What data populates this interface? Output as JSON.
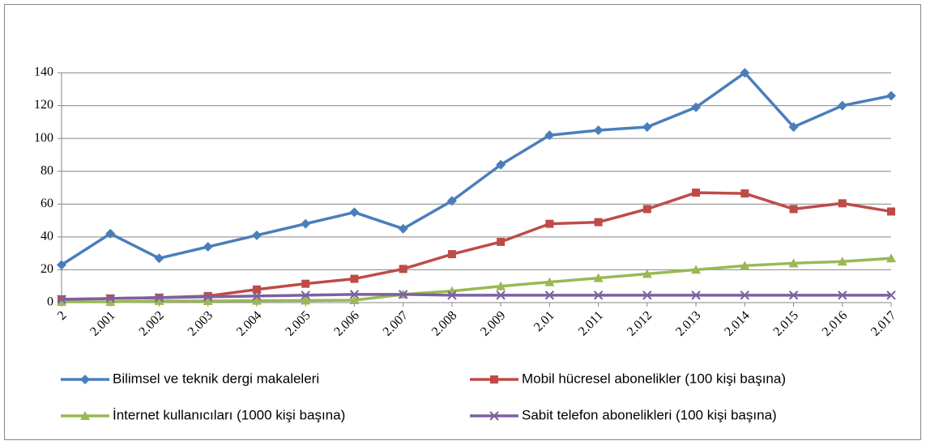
{
  "chart_data": {
    "type": "line",
    "categories": [
      "2",
      "2.001",
      "2.002",
      "2.003",
      "2.004",
      "2.005",
      "2.006",
      "2.007",
      "2.008",
      "2.009",
      "2.01",
      "2.011",
      "2.012",
      "2.013",
      "2.014",
      "2.015",
      "2.016",
      "2.017"
    ],
    "series": [
      {
        "name": "Bilimsel ve teknik dergi makaleleri",
        "color": "#4a7ebb",
        "marker": "diamond",
        "values": [
          23,
          42,
          27,
          34,
          41,
          48,
          55,
          45,
          62,
          84,
          102,
          105,
          107,
          119,
          140,
          107,
          120,
          126
        ]
      },
      {
        "name": "Mobil hücresel abonelikler (100 kişi başına)",
        "color": "#be4b48",
        "marker": "square",
        "values": [
          2,
          2.5,
          3,
          4,
          8,
          11.5,
          14.5,
          20.5,
          29.5,
          37,
          48,
          49,
          57,
          67,
          66.5,
          57,
          60.5,
          55.5
        ]
      },
      {
        "name": "İnternet kullanıcıları (1000 kişi başına)",
        "color": "#98b954",
        "marker": "triangle",
        "values": [
          0.5,
          0.5,
          1,
          1,
          1.2,
          1.3,
          1.5,
          5,
          7,
          10,
          12.5,
          15,
          17.5,
          20,
          22.5,
          24,
          25,
          27
        ]
      },
      {
        "name": "Sabit telefon abonelikleri (100 kişi başına)",
        "color": "#7d60a0",
        "marker": "x",
        "values": [
          2,
          2.5,
          3,
          3.5,
          4,
          4.5,
          5,
          5,
          4.5,
          4.5,
          4.5,
          4.5,
          4.5,
          4.5,
          4.5,
          4.5,
          4.5,
          4.5
        ]
      }
    ],
    "ylim": [
      0,
      140
    ],
    "yticks": [
      0,
      20,
      40,
      60,
      80,
      100,
      120,
      140
    ],
    "grid": true,
    "legend": "bottom"
  }
}
